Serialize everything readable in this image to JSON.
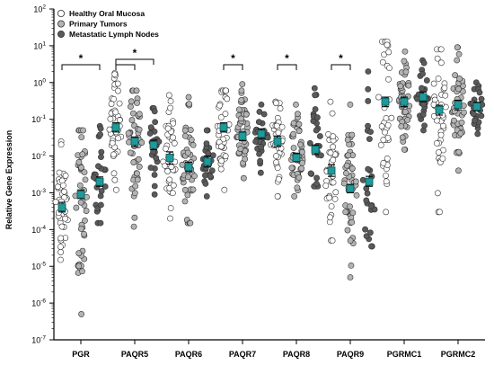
{
  "chart_data": {
    "type": "scatter",
    "title": "",
    "ylabel": "Relative Gene Expression",
    "xlabel": "",
    "yscale": "log",
    "ylim": [
      1e-07,
      100
    ],
    "yticks": [
      {
        "value": 1e-07,
        "base": "10",
        "exp": "-7"
      },
      {
        "value": 1e-06,
        "base": "10",
        "exp": "-6"
      },
      {
        "value": 1e-05,
        "base": "10",
        "exp": "-5"
      },
      {
        "value": 0.0001,
        "base": "10",
        "exp": "-4"
      },
      {
        "value": 0.001,
        "base": "10",
        "exp": "-3"
      },
      {
        "value": 0.01,
        "base": "10",
        "exp": "-2"
      },
      {
        "value": 0.1,
        "base": "10",
        "exp": "-1"
      },
      {
        "value": 1,
        "base": "10",
        "exp": "0"
      },
      {
        "value": 10,
        "base": "10",
        "exp": "1"
      },
      {
        "value": 100,
        "base": "10",
        "exp": "2"
      }
    ],
    "categories": [
      "PGR",
      "PAQR5",
      "PAQR6",
      "PAQR7",
      "PAQR8",
      "PAQR9",
      "PGRMC1",
      "PGRMC2"
    ],
    "legend_position": "top-left",
    "colors": {
      "healthy_fill": "#ffffff",
      "primary_fill": "#b3b3b3",
      "metastatic_fill": "#5a5a5a",
      "marker_stroke": "#333333",
      "mean_marker": "#1f9a9a"
    },
    "series": [
      {
        "name": "Healthy Oral Mucosa",
        "means": [
          0.0004,
          0.06,
          0.009,
          0.06,
          0.025,
          0.004,
          0.3,
          0.18
        ],
        "sem_low": [
          0.0003,
          0.045,
          0.006,
          0.045,
          0.018,
          0.0028,
          0.22,
          0.13
        ],
        "sem_high": [
          0.00055,
          0.08,
          0.013,
          0.08,
          0.035,
          0.0058,
          0.4,
          0.24
        ],
        "range_min": [
          1.5e-05,
          0.0012,
          0.0002,
          0.0012,
          0.0008,
          5e-05,
          0.0003,
          0.0003
        ],
        "range_max": [
          0.025,
          1.8,
          0.45,
          0.6,
          0.3,
          0.3,
          13,
          8
        ]
      },
      {
        "name": "Primary Tumors",
        "means": [
          0.0009,
          0.025,
          0.005,
          0.035,
          0.009,
          0.0013,
          0.3,
          0.25
        ],
        "sem_low": [
          0.0007,
          0.018,
          0.0038,
          0.026,
          0.007,
          0.001,
          0.22,
          0.18
        ],
        "sem_high": [
          0.0012,
          0.033,
          0.0068,
          0.045,
          0.012,
          0.0017,
          0.4,
          0.33
        ],
        "range_min": [
          5e-07,
          0.00012,
          0.00015,
          0.0025,
          0.0008,
          5e-06,
          0.015,
          0.004
        ],
        "range_max": [
          0.05,
          0.6,
          0.4,
          0.9,
          0.25,
          0.25,
          7,
          9
        ]
      },
      {
        "name": "Metastatic Lymph Nodes",
        "means": [
          0.002,
          0.02,
          0.007,
          0.04,
          0.015,
          0.002,
          0.4,
          0.22
        ],
        "sem_low": [
          0.0015,
          0.015,
          0.005,
          0.03,
          0.011,
          0.0015,
          0.3,
          0.17
        ],
        "sem_high": [
          0.0027,
          0.027,
          0.01,
          0.055,
          0.02,
          0.0028,
          0.55,
          0.29
        ],
        "range_min": [
          0.00015,
          0.0009,
          0.0008,
          0.0035,
          0.0015,
          3.5e-05,
          0.05,
          0.04
        ],
        "range_max": [
          0.065,
          0.2,
          0.05,
          0.25,
          0.7,
          2,
          4,
          1
        ]
      }
    ],
    "significance": [
      {
        "category": "PGR",
        "from": 0,
        "to": 2,
        "level": 0,
        "label": "*"
      },
      {
        "category": "PAQR5",
        "from": 0,
        "to": 1,
        "level": 0,
        "label": "*"
      },
      {
        "category": "PAQR5",
        "from": 0,
        "to": 2,
        "level": 1,
        "label": "*"
      },
      {
        "category": "PAQR7",
        "from": 0,
        "to": 1,
        "level": 0,
        "label": "*"
      },
      {
        "category": "PAQR8",
        "from": 0,
        "to": 1,
        "level": 0,
        "label": "*"
      },
      {
        "category": "PAQR9",
        "from": 0,
        "to": 1,
        "level": 0,
        "label": "*"
      }
    ]
  }
}
